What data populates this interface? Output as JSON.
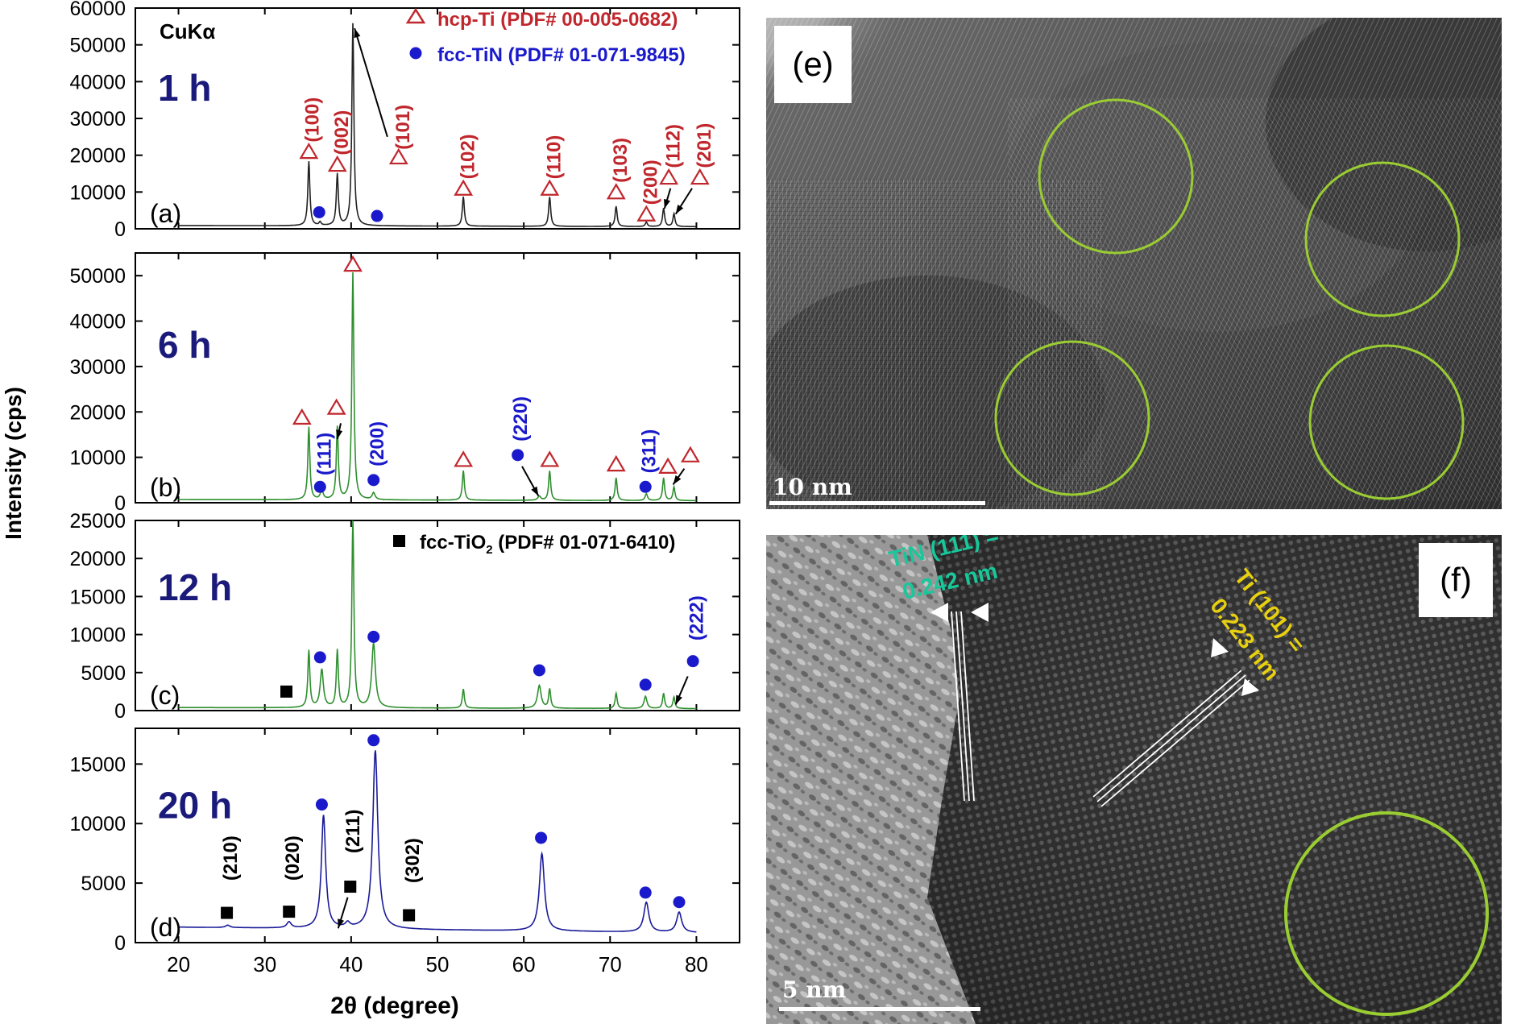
{
  "chart_data": {
    "type": "line",
    "xlabel": "2θ (degree)",
    "ylabel": "Intensity (cps)",
    "xlim": [
      15,
      85
    ],
    "x_ticks": [
      20,
      30,
      40,
      50,
      60,
      70,
      80
    ],
    "radiation": "CuKα",
    "legend": [
      {
        "symbol": "open-triangle",
        "color": "#c0272d",
        "text": "hcp-Ti (PDF# 00-005-0682)"
      },
      {
        "symbol": "filled-circle",
        "color": "#1a1acc",
        "text": "fcc-TiN (PDF# 01-071-9845)"
      },
      {
        "symbol": "filled-square",
        "color": "#000000",
        "text": "fcc-TiO",
        "sub": "2",
        "tail": " (PDF# 01-071-6410)"
      }
    ],
    "panels": [
      {
        "label": "(a)",
        "time": "1 h",
        "color": "#222222",
        "ylim": [
          0,
          60000
        ],
        "y_ticks": [
          0,
          10000,
          20000,
          30000,
          40000,
          50000,
          60000
        ],
        "baseline": 900,
        "peaks": [
          {
            "x": 35.1,
            "y": 17500,
            "w": 0.14
          },
          {
            "x": 36.4,
            "y": 900,
            "w": 0.14
          },
          {
            "x": 38.4,
            "y": 14000,
            "w": 0.14
          },
          {
            "x": 40.2,
            "y": 55000,
            "w": 0.14
          },
          {
            "x": 53.0,
            "y": 8000,
            "w": 0.14
          },
          {
            "x": 63.0,
            "y": 8000,
            "w": 0.14
          },
          {
            "x": 70.7,
            "y": 5500,
            "w": 0.14
          },
          {
            "x": 74.2,
            "y": 1200,
            "w": 0.14
          },
          {
            "x": 76.2,
            "y": 5000,
            "w": 0.14
          },
          {
            "x": 77.4,
            "y": 3500,
            "w": 0.14
          }
        ],
        "markers": [
          {
            "type": "tri",
            "x": 35.1,
            "y": 21000
          },
          {
            "type": "tri",
            "x": 38.4,
            "y": 17500
          },
          {
            "type": "tri",
            "x": 45.5,
            "y": 19500
          },
          {
            "type": "tri",
            "x": 53.0,
            "y": 11000
          },
          {
            "type": "tri",
            "x": 63.0,
            "y": 11000
          },
          {
            "type": "tri",
            "x": 70.7,
            "y": 10000
          },
          {
            "type": "tri",
            "x": 74.2,
            "y": 4000
          },
          {
            "type": "tri",
            "x": 76.8,
            "y": 14000
          },
          {
            "type": "tri",
            "x": 80.4,
            "y": 14000
          },
          {
            "type": "dot",
            "x": 36.3,
            "y": 4500
          },
          {
            "type": "dot",
            "x": 43.0,
            "y": 3500
          }
        ],
        "hkl": [
          {
            "text": "(100)",
            "x": 35.5,
            "y": 23500,
            "color": "#c0272d"
          },
          {
            "text": "(002)",
            "x": 38.9,
            "y": 20000,
            "color": "#c0272d"
          },
          {
            "text": "(101)",
            "x": 46.0,
            "y": 21500,
            "color": "#c0272d"
          },
          {
            "text": "(102)",
            "x": 53.5,
            "y": 13500,
            "color": "#c0272d"
          },
          {
            "text": "(110)",
            "x": 63.5,
            "y": 13500,
            "color": "#c0272d"
          },
          {
            "text": "(103)",
            "x": 71.2,
            "y": 12500,
            "color": "#c0272d"
          },
          {
            "text": "(200)",
            "x": 74.7,
            "y": 6500,
            "color": "#c0272d"
          },
          {
            "text": "(112)",
            "x": 77.3,
            "y": 16500,
            "color": "#c0272d"
          },
          {
            "text": "(201)",
            "x": 80.9,
            "y": 16500,
            "color": "#c0272d"
          }
        ],
        "arrows": [
          {
            "x1": 44.2,
            "y1": 25000,
            "x2": 40.4,
            "y2": 54500
          },
          {
            "x1": 77.0,
            "y1": 11000,
            "x2": 76.3,
            "y2": 5500
          },
          {
            "x1": 79.5,
            "y1": 11000,
            "x2": 77.6,
            "y2": 4000
          }
        ]
      },
      {
        "label": "(b)",
        "time": "6 h",
        "color": "#2f8f2f",
        "ylim": [
          0,
          55000
        ],
        "y_ticks": [
          0,
          10000,
          20000,
          30000,
          40000,
          50000
        ],
        "baseline": 700,
        "peaks": [
          {
            "x": 35.1,
            "y": 16000,
            "w": 0.14
          },
          {
            "x": 36.6,
            "y": 2200,
            "w": 0.18
          },
          {
            "x": 38.4,
            "y": 16000,
            "w": 0.14
          },
          {
            "x": 40.2,
            "y": 50000,
            "w": 0.14
          },
          {
            "x": 42.6,
            "y": 1500,
            "w": 0.2
          },
          {
            "x": 53.0,
            "y": 6500,
            "w": 0.14
          },
          {
            "x": 61.8,
            "y": 900,
            "w": 0.2
          },
          {
            "x": 63.0,
            "y": 6500,
            "w": 0.14
          },
          {
            "x": 70.7,
            "y": 5000,
            "w": 0.14
          },
          {
            "x": 74.2,
            "y": 1500,
            "w": 0.16
          },
          {
            "x": 76.2,
            "y": 5000,
            "w": 0.14
          },
          {
            "x": 77.4,
            "y": 3000,
            "w": 0.14
          }
        ],
        "markers": [
          {
            "type": "tri",
            "x": 34.3,
            "y": 18800
          },
          {
            "type": "tri",
            "x": 38.3,
            "y": 21000
          },
          {
            "type": "tri",
            "x": 40.2,
            "y": 52500
          },
          {
            "type": "tri",
            "x": 53.0,
            "y": 9500
          },
          {
            "type": "tri",
            "x": 63.0,
            "y": 9500
          },
          {
            "type": "tri",
            "x": 70.7,
            "y": 8500
          },
          {
            "type": "tri",
            "x": 76.7,
            "y": 8000
          },
          {
            "type": "tri",
            "x": 79.3,
            "y": 10500
          },
          {
            "type": "dot",
            "x": 36.4,
            "y": 3500
          },
          {
            "type": "dot",
            "x": 42.6,
            "y": 5000
          },
          {
            "type": "dot",
            "x": 59.3,
            "y": 10500
          },
          {
            "type": "dot",
            "x": 74.1,
            "y": 3500
          }
        ],
        "hkl": [
          {
            "text": "(111)",
            "x": 36.9,
            "y": 6000,
            "color": "#1a1acc"
          },
          {
            "text": "(200)",
            "x": 43.0,
            "y": 8000,
            "color": "#1a1acc"
          },
          {
            "text": "(220)",
            "x": 59.6,
            "y": 13500,
            "color": "#1a1acc"
          },
          {
            "text": "(311)",
            "x": 74.5,
            "y": 6500,
            "color": "#1a1acc"
          }
        ],
        "arrows": [
          {
            "x1": 38.8,
            "y1": 17500,
            "x2": 38.4,
            "y2": 14000
          },
          {
            "x1": 59.8,
            "y1": 8000,
            "x2": 61.7,
            "y2": 1500
          },
          {
            "x1": 78.6,
            "y1": 7500,
            "x2": 77.3,
            "y2": 4000
          }
        ]
      },
      {
        "label": "(c)",
        "time": "12 h",
        "color": "#2f8f2f",
        "ylim": [
          0,
          25000
        ],
        "y_ticks": [
          0,
          5000,
          10000,
          15000,
          20000,
          25000
        ],
        "baseline": 400,
        "peaks": [
          {
            "x": 35.1,
            "y": 7500,
            "w": 0.14
          },
          {
            "x": 36.6,
            "y": 5000,
            "w": 0.22
          },
          {
            "x": 38.4,
            "y": 7500,
            "w": 0.14
          },
          {
            "x": 40.2,
            "y": 25000,
            "w": 0.14
          },
          {
            "x": 42.6,
            "y": 8500,
            "w": 0.25
          },
          {
            "x": 53.0,
            "y": 2500,
            "w": 0.14
          },
          {
            "x": 61.8,
            "y": 3000,
            "w": 0.25
          },
          {
            "x": 63.0,
            "y": 2500,
            "w": 0.14
          },
          {
            "x": 70.7,
            "y": 2000,
            "w": 0.14
          },
          {
            "x": 74.1,
            "y": 1600,
            "w": 0.2
          },
          {
            "x": 76.2,
            "y": 2000,
            "w": 0.14
          },
          {
            "x": 77.4,
            "y": 1500,
            "w": 0.14
          }
        ],
        "markers": [
          {
            "type": "dot",
            "x": 36.4,
            "y": 7000
          },
          {
            "type": "dot",
            "x": 42.6,
            "y": 9700
          },
          {
            "type": "dot",
            "x": 61.8,
            "y": 5300
          },
          {
            "type": "dot",
            "x": 74.1,
            "y": 3400
          },
          {
            "type": "dot",
            "x": 79.6,
            "y": 6500
          },
          {
            "type": "sq",
            "x": 32.5,
            "y": 2500
          }
        ],
        "hkl": [
          {
            "text": "(222)",
            "x": 80.0,
            "y": 9200,
            "color": "#1a1acc"
          }
        ],
        "arrows": [
          {
            "x1": 79.0,
            "y1": 4500,
            "x2": 77.6,
            "y2": 800
          }
        ]
      },
      {
        "label": "(d)",
        "time": "20 h",
        "color": "#1a1a99",
        "ylim": [
          0,
          18000
        ],
        "y_ticks": [
          0,
          5000,
          10000,
          15000
        ],
        "baseline": 1300,
        "peaks": [
          {
            "x": 25.7,
            "y": 200,
            "w": 0.3
          },
          {
            "x": 32.8,
            "y": 500,
            "w": 0.3
          },
          {
            "x": 36.8,
            "y": 9500,
            "w": 0.3
          },
          {
            "x": 39.6,
            "y": 400,
            "w": 0.3
          },
          {
            "x": 42.8,
            "y": 15000,
            "w": 0.35
          },
          {
            "x": 62.1,
            "y": 6500,
            "w": 0.35
          },
          {
            "x": 74.2,
            "y": 2500,
            "w": 0.35
          },
          {
            "x": 78.0,
            "y": 1700,
            "w": 0.35
          }
        ],
        "markers": [
          {
            "type": "dot",
            "x": 36.6,
            "y": 11600
          },
          {
            "type": "dot",
            "x": 42.6,
            "y": 17000
          },
          {
            "type": "dot",
            "x": 62.0,
            "y": 8800
          },
          {
            "type": "dot",
            "x": 74.1,
            "y": 4200
          },
          {
            "type": "dot",
            "x": 78.0,
            "y": 3400
          },
          {
            "type": "sq",
            "x": 25.6,
            "y": 2500
          },
          {
            "type": "sq",
            "x": 32.8,
            "y": 2600
          },
          {
            "type": "sq",
            "x": 39.9,
            "y": 4700
          },
          {
            "type": "sq",
            "x": 46.7,
            "y": 2300
          }
        ],
        "hkl": [
          {
            "text": "(210)",
            "x": 26.0,
            "y": 5200,
            "color": "#000000"
          },
          {
            "text": "(020)",
            "x": 33.2,
            "y": 5200,
            "color": "#000000"
          },
          {
            "text": "(211)",
            "x": 40.2,
            "y": 7500,
            "color": "#000000"
          },
          {
            "text": "(302)",
            "x": 47.1,
            "y": 5000,
            "color": "#000000"
          }
        ],
        "arrows": [
          {
            "x1": 39.6,
            "y1": 3800,
            "x2": 38.5,
            "y2": 1200
          }
        ]
      }
    ]
  },
  "tem": {
    "e": {
      "label": "(e)",
      "scale_label": "10 nm",
      "circle_color": "#9acd32"
    },
    "f": {
      "label": "(f)",
      "scale_label": "5 nm",
      "circle_color": "#9acd32",
      "tin_line1": "TiN (111) =",
      "tin_line2": "0.242 nm",
      "tin_color": "#18c79a",
      "ti_line1": "Ti (101) =",
      "ti_line2": "0.223 nm",
      "ti_color": "#e8d010"
    }
  }
}
